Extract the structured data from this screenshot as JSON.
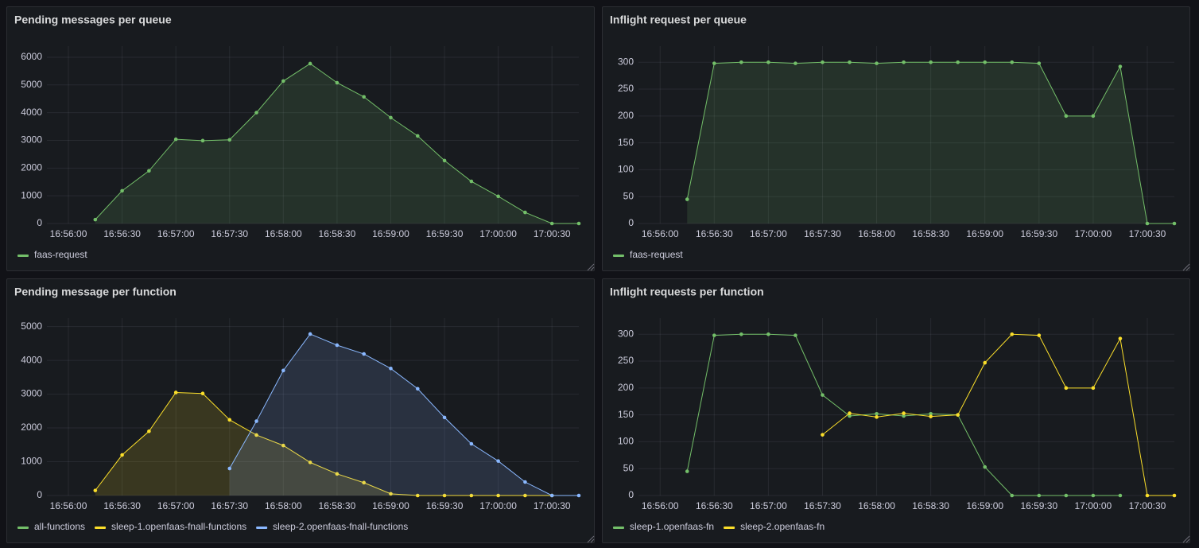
{
  "chart_data": [
    {
      "type": "area",
      "title": "Pending messages per queue",
      "x": [
        "16:56:15",
        "16:56:30",
        "16:56:45",
        "16:57:00",
        "16:57:15",
        "16:57:30",
        "16:57:45",
        "16:58:00",
        "16:58:15",
        "16:58:30",
        "16:58:45",
        "16:59:00",
        "16:59:15",
        "16:59:30",
        "16:59:45",
        "17:00:00",
        "17:00:15",
        "17:00:30",
        "17:00:45"
      ],
      "series": [
        {
          "name": "faas-request",
          "color": "#73bf69",
          "values": [
            140,
            1180,
            1900,
            3040,
            2990,
            3020,
            4000,
            5140,
            5770,
            5080,
            4570,
            3820,
            3160,
            2270,
            1520,
            980,
            400,
            0,
            0
          ]
        }
      ],
      "xlim": [
        "16:55:48",
        "17:00:45"
      ],
      "xticks": [
        "16:56:00",
        "16:56:30",
        "16:57:00",
        "16:57:30",
        "16:58:00",
        "16:58:30",
        "16:59:00",
        "16:59:30",
        "17:00:00",
        "17:00:30"
      ],
      "ylim": [
        0,
        6400
      ],
      "yticks": [
        0,
        1000,
        2000,
        3000,
        4000,
        5000,
        6000
      ],
      "grid": true
    },
    {
      "type": "area",
      "title": "Inflight request per queue",
      "x": [
        "16:56:15",
        "16:56:30",
        "16:56:45",
        "16:57:00",
        "16:57:15",
        "16:57:30",
        "16:57:45",
        "16:58:00",
        "16:58:15",
        "16:58:30",
        "16:58:45",
        "16:59:00",
        "16:59:15",
        "16:59:30",
        "16:59:45",
        "17:00:00",
        "17:00:15",
        "17:00:30",
        "17:00:45"
      ],
      "series": [
        {
          "name": "faas-request",
          "color": "#73bf69",
          "values": [
            45,
            298,
            300,
            300,
            298,
            300,
            300,
            298,
            300,
            300,
            300,
            300,
            300,
            298,
            200,
            200,
            292,
            0,
            0
          ]
        }
      ],
      "xlim": [
        "16:55:48",
        "17:00:45"
      ],
      "xticks": [
        "16:56:00",
        "16:56:30",
        "16:57:00",
        "16:57:30",
        "16:58:00",
        "16:58:30",
        "16:59:00",
        "16:59:30",
        "17:00:00",
        "17:00:30"
      ],
      "ylim": [
        0,
        330
      ],
      "yticks": [
        0,
        50,
        100,
        150,
        200,
        250,
        300
      ],
      "grid": true
    },
    {
      "type": "area",
      "title": "Pending message per function",
      "x": [
        "16:56:15",
        "16:56:30",
        "16:56:45",
        "16:57:00",
        "16:57:15",
        "16:57:30",
        "16:57:45",
        "16:58:00",
        "16:58:15",
        "16:58:30",
        "16:58:45",
        "16:59:00",
        "16:59:15",
        "16:59:30",
        "16:59:45",
        "17:00:00",
        "17:00:15",
        "17:00:30",
        "17:00:45"
      ],
      "series": [
        {
          "name": "all-functions",
          "color": "#73bf69",
          "values": [
            null,
            null,
            null,
            null,
            null,
            null,
            null,
            null,
            null,
            null,
            null,
            null,
            null,
            null,
            null,
            null,
            null,
            null,
            null
          ]
        },
        {
          "name": "sleep-1.openfaas-fnall-functions",
          "color": "#fade2a",
          "values": [
            150,
            1200,
            1900,
            3050,
            3020,
            2240,
            1790,
            1480,
            980,
            640,
            380,
            50,
            0,
            0,
            0,
            0,
            0,
            0,
            null
          ]
        },
        {
          "name": "sleep-2.openfaas-fnall-functions",
          "color": "#8ab8ff",
          "values": [
            null,
            null,
            null,
            null,
            null,
            800,
            2200,
            3700,
            4780,
            4450,
            4190,
            3760,
            3160,
            2310,
            1530,
            1020,
            400,
            0,
            0
          ]
        }
      ],
      "xlim": [
        "16:55:48",
        "17:00:45"
      ],
      "xticks": [
        "16:56:00",
        "16:56:30",
        "16:57:00",
        "16:57:30",
        "16:58:00",
        "16:58:30",
        "16:59:00",
        "16:59:30",
        "17:00:00",
        "17:00:30"
      ],
      "ylim": [
        0,
        5250
      ],
      "yticks": [
        0,
        1000,
        2000,
        3000,
        4000,
        5000
      ],
      "grid": true
    },
    {
      "type": "line",
      "title": "Inflight requests per function",
      "x": [
        "16:56:15",
        "16:56:30",
        "16:56:45",
        "16:57:00",
        "16:57:15",
        "16:57:30",
        "16:57:45",
        "16:58:00",
        "16:58:15",
        "16:58:30",
        "16:58:45",
        "16:59:00",
        "16:59:15",
        "16:59:30",
        "16:59:45",
        "17:00:00",
        "17:00:15",
        "17:00:30",
        "17:00:45"
      ],
      "series": [
        {
          "name": "sleep-1.openfaas-fn",
          "color": "#73bf69",
          "values": [
            45,
            298,
            300,
            300,
            298,
            187,
            148,
            152,
            148,
            152,
            150,
            53,
            0,
            0,
            0,
            0,
            0,
            null,
            null
          ]
        },
        {
          "name": "sleep-2.openfaas-fn",
          "color": "#fade2a",
          "values": [
            null,
            null,
            null,
            null,
            null,
            113,
            153,
            146,
            153,
            147,
            150,
            247,
            300,
            298,
            200,
            200,
            292,
            0,
            0
          ]
        }
      ],
      "xlim": [
        "16:55:48",
        "17:00:45"
      ],
      "xticks": [
        "16:56:00",
        "16:56:30",
        "16:57:00",
        "16:57:30",
        "16:58:00",
        "16:58:30",
        "16:59:00",
        "16:59:30",
        "17:00:00",
        "17:00:30"
      ],
      "ylim": [
        0,
        330
      ],
      "yticks": [
        0,
        50,
        100,
        150,
        200,
        250,
        300
      ],
      "grid": true
    }
  ]
}
